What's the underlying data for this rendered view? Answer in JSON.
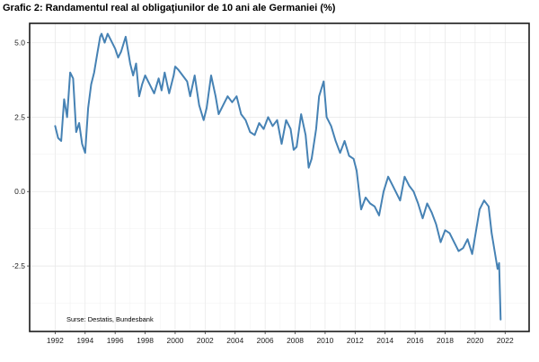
{
  "chart_data": {
    "type": "line",
    "title": "Grafic 2: Randamentul real al obligaţiunilor de 10 ani ale Germaniei (%)",
    "xlabel": "",
    "ylabel": "",
    "source": "Surse: Destatis, Bundesbank",
    "xlim": [
      1990.3,
      2023.6
    ],
    "ylim": [
      -4.7,
      5.65
    ],
    "x_ticks": [
      1992,
      1994,
      1996,
      1998,
      2000,
      2002,
      2004,
      2006,
      2008,
      2010,
      2012,
      2014,
      2016,
      2018,
      2020,
      2022
    ],
    "y_ticks": [
      5.0,
      2.5,
      0.0,
      -2.5
    ],
    "y_tick_labels": [
      "5.0",
      "2.5",
      "0.0",
      "-2.5"
    ],
    "grid": true,
    "line_color": "#4682b4",
    "series": [
      {
        "x": [
          1992.0,
          1992.2,
          1992.4,
          1992.6,
          1992.8,
          1993.0,
          1993.2,
          1993.4,
          1993.6,
          1993.8,
          1994.0,
          1994.2,
          1994.4,
          1994.6,
          1994.8,
          1995.0,
          1995.1,
          1995.3,
          1995.5,
          1995.7,
          1996.0,
          1996.2,
          1996.4,
          1996.7,
          1997.0,
          1997.2,
          1997.4,
          1997.6,
          1997.8,
          1998.0,
          1998.3,
          1998.6,
          1998.9,
          1999.1,
          1999.3,
          1999.6,
          1999.9,
          2000.0,
          2000.2,
          2000.5,
          2000.8,
          2001.0,
          2001.3,
          2001.6,
          2001.9,
          2002.1,
          2002.4,
          2002.7,
          2002.9,
          2003.2,
          2003.5,
          2003.8,
          2004.1,
          2004.4,
          2004.7,
          2005.0,
          2005.3,
          2005.6,
          2005.9,
          2006.2,
          2006.5,
          2006.8,
          2007.1,
          2007.4,
          2007.7,
          2007.9,
          2008.1,
          2008.4,
          2008.7,
          2008.9,
          2009.1,
          2009.4,
          2009.6,
          2009.9,
          2010.1,
          2010.4,
          2010.7,
          2011.0,
          2011.3,
          2011.6,
          2011.9,
          2012.1,
          2012.4,
          2012.7,
          2013.0,
          2013.3,
          2013.6,
          2013.9,
          2014.2,
          2014.5,
          2014.8,
          2015.0,
          2015.3,
          2015.6,
          2015.9,
          2016.2,
          2016.5,
          2016.8,
          2017.1,
          2017.4,
          2017.7,
          2018.0,
          2018.3,
          2018.6,
          2018.9,
          2019.2,
          2019.5,
          2019.8,
          2020.0,
          2020.3,
          2020.6,
          2020.9,
          2021.1,
          2021.3,
          2021.5,
          2021.6,
          2021.7
        ],
        "y": [
          2.2,
          1.8,
          1.7,
          3.1,
          2.5,
          4.0,
          3.8,
          2.0,
          2.3,
          1.6,
          1.3,
          2.8,
          3.6,
          4.0,
          4.6,
          5.2,
          5.3,
          5.0,
          5.3,
          5.1,
          4.8,
          4.5,
          4.7,
          5.2,
          4.3,
          3.9,
          4.3,
          3.2,
          3.6,
          3.9,
          3.6,
          3.3,
          3.8,
          3.4,
          4.0,
          3.3,
          3.9,
          4.2,
          4.1,
          3.9,
          3.7,
          3.2,
          3.9,
          2.9,
          2.4,
          2.8,
          3.9,
          3.2,
          2.6,
          2.9,
          3.2,
          3.0,
          3.2,
          2.6,
          2.4,
          2.0,
          1.9,
          2.3,
          2.1,
          2.5,
          2.2,
          2.4,
          1.6,
          2.4,
          2.1,
          1.4,
          1.5,
          2.6,
          1.9,
          0.8,
          1.1,
          2.1,
          3.2,
          3.7,
          2.5,
          2.2,
          1.7,
          1.3,
          1.7,
          1.2,
          1.1,
          0.7,
          -0.6,
          -0.2,
          -0.4,
          -0.5,
          -0.8,
          0.0,
          0.5,
          0.2,
          -0.1,
          -0.3,
          0.5,
          0.2,
          0.0,
          -0.4,
          -0.9,
          -0.4,
          -0.7,
          -1.1,
          -1.7,
          -1.3,
          -1.4,
          -1.7,
          -2.0,
          -1.9,
          -1.6,
          -2.1,
          -1.5,
          -0.6,
          -0.3,
          -0.5,
          -1.4,
          -2.0,
          -2.6,
          -2.4,
          -4.3
        ]
      }
    ]
  }
}
